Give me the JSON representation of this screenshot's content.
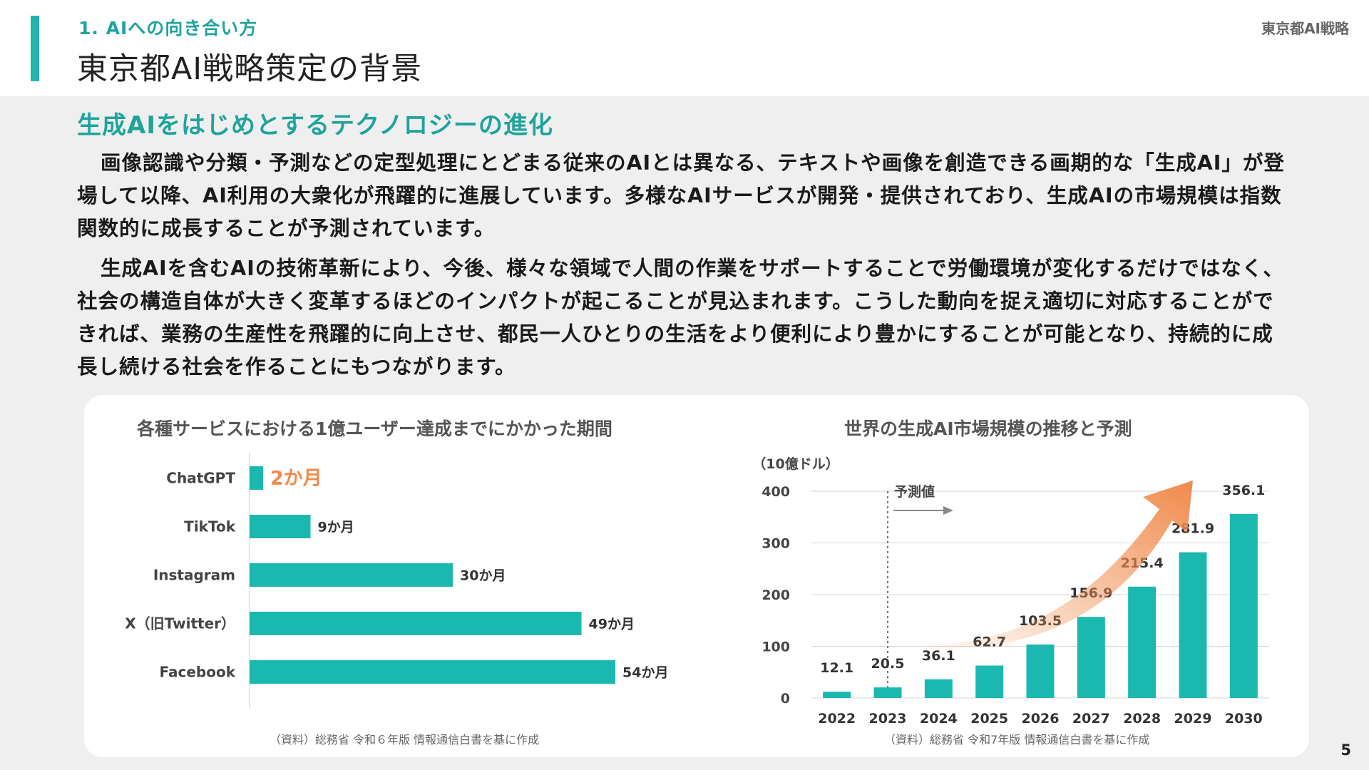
{
  "header": {
    "section": "1. AIへの向き合い方",
    "title": "東京都AI戦略策定の背景",
    "doc_label": "東京都AI戦略"
  },
  "content": {
    "subheading": "生成AIをはじめとするテクノロジーの進化",
    "paragraph1": "画像認識や分類・予測などの定型処理にとどまる従来のAIとは異なる、テキストや画像を創造できる画期的な「生成AI」が登場して以降、AI利用の大衆化が飛躍的に進展しています。多様なAIサービスが開発・提供されており、生成AIの市場規模は指数関数的に成長することが予測されています。",
    "paragraph2": "生成AIを含むAIの技術革新により、今後、様々な領域で人間の作業をサポートすることで労働環境が変化するだけではなく、社会の構造自体が大きく変革するほどのインパクトが起こることが見込まれます。こうした動向を捉え適切に対応することができれば、業務の生産性を飛躍的に向上させ、都民一人ひとりの生活をより便利により豊かにすることが可能となり、持続的に成長し続ける社会を作ることにもつながります。"
  },
  "chart_data": [
    {
      "type": "bar",
      "orientation": "horizontal",
      "title": "各種サービスにおける1億ユーザー達成までにかかった期間",
      "categories": [
        "ChatGPT",
        "TikTok",
        "Instagram",
        "X（旧Twitter）",
        "Facebook"
      ],
      "values": [
        2,
        9,
        30,
        49,
        54
      ],
      "value_labels": [
        "2か月",
        "9か月",
        "30か月",
        "49か月",
        "54か月"
      ],
      "highlight_index": 0,
      "bar_color": "#1bb8b0",
      "highlight_label_color": "#f08a4b",
      "source": "（資料）総務省 令和６年版 情報通信白書を基に作成"
    },
    {
      "type": "bar",
      "title": "世界の生成AI市場規模の推移と予測",
      "unit_label": "（10億ドル）",
      "categories": [
        "2022",
        "2023",
        "2024",
        "2025",
        "2026",
        "2027",
        "2028",
        "2029",
        "2030"
      ],
      "values": [
        12.1,
        20.5,
        36.1,
        62.7,
        103.5,
        156.9,
        215.4,
        281.9,
        356.1
      ],
      "value_labels": [
        "12.1",
        "20.5",
        "36.1",
        "62.7",
        "103.5",
        "156.9",
        "215.4",
        "281.9",
        "356.1"
      ],
      "ylim": [
        0,
        400
      ],
      "yticks": [
        "0",
        "100",
        "200",
        "300",
        "400"
      ],
      "forecast_label": "予測値",
      "forecast_start": "2024",
      "grid": true,
      "bar_color": "#1bb8b0",
      "arrow_color": "#f08a4b",
      "source": "（資料）総務省 令和7年版 情報通信白書を基に作成"
    }
  ],
  "footer": {
    "page_number": "5"
  }
}
